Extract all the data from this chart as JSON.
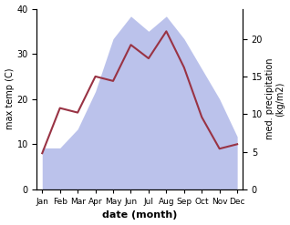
{
  "months": [
    "Jan",
    "Feb",
    "Mar",
    "Apr",
    "May",
    "Jun",
    "Jul",
    "Aug",
    "Sep",
    "Oct",
    "Nov",
    "Dec"
  ],
  "temperature": [
    8,
    18,
    17,
    25,
    24,
    32,
    29,
    35,
    27,
    16,
    9,
    10
  ],
  "precipitation": [
    5.5,
    5.5,
    8.0,
    13.0,
    20.0,
    23.0,
    21.0,
    23.0,
    20.0,
    16.0,
    12.0,
    7.0
  ],
  "temp_color": "#993344",
  "precip_color_fill": "#b0b8e8",
  "ylabel_left": "max temp (C)",
  "ylabel_right": "med. precipitation\n(kg/m2)",
  "xlabel": "date (month)",
  "ylim_left": [
    0,
    40
  ],
  "ylim_right": [
    0,
    24
  ],
  "yticks_left": [
    0,
    10,
    20,
    30,
    40
  ],
  "yticks_right": [
    0,
    5,
    10,
    15,
    20
  ],
  "background_color": "#ffffff"
}
